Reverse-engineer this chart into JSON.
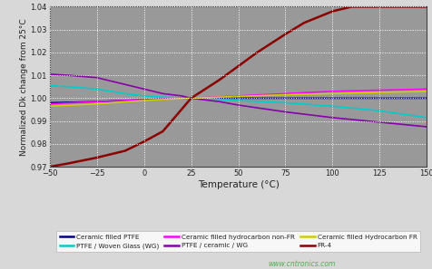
{
  "xlabel": "Temperature (°C)",
  "ylabel": "Normalized Dk change from 25°C",
  "xlim": [
    -50,
    150
  ],
  "ylim": [
    0.97,
    1.04
  ],
  "xticks": [
    -50,
    -25,
    0,
    25,
    50,
    75,
    100,
    125,
    150
  ],
  "yticks": [
    0.97,
    0.98,
    0.99,
    1.0,
    1.01,
    1.02,
    1.03,
    1.04
  ],
  "bg_color": "#999999",
  "fig_bg_color": "#d8d8d8",
  "grid_color": "#ffffff",
  "watermark": "www.cntronics.com",
  "series": [
    {
      "label": "Ceramic filled PTFE",
      "color": "#000080",
      "linewidth": 1.2,
      "x": [
        -50,
        -40,
        -25,
        -10,
        0,
        10,
        25,
        40,
        50,
        75,
        100,
        125,
        150
      ],
      "y": [
        0.998,
        0.9982,
        0.9985,
        0.999,
        0.9993,
        0.9997,
        1.0,
        1.0,
        1.0,
        1.0,
        1.0,
        1.0,
        1.0
      ]
    },
    {
      "label": "PTFE / Woven Glass (WG)",
      "color": "#00cccc",
      "linewidth": 1.2,
      "x": [
        -50,
        -40,
        -25,
        -10,
        0,
        10,
        20,
        25,
        40,
        50,
        75,
        100,
        125,
        150
      ],
      "y": [
        1.0055,
        1.005,
        1.004,
        1.002,
        1.001,
        1.0005,
        1.0001,
        1.0,
        0.9995,
        0.999,
        0.998,
        0.9965,
        0.9945,
        0.9915
      ]
    },
    {
      "label": "Ceramic filled hydrocarbon non-FR",
      "color": "#ff00ff",
      "linewidth": 1.2,
      "x": [
        -50,
        -25,
        0,
        25,
        50,
        75,
        100,
        125,
        150
      ],
      "y": [
        0.9975,
        0.9985,
        0.9993,
        1.0,
        1.001,
        1.002,
        1.003,
        1.0035,
        1.004
      ]
    },
    {
      "label": "PTFE / ceramic / WG",
      "color": "#8800aa",
      "linewidth": 1.2,
      "x": [
        -50,
        -40,
        -25,
        -10,
        0,
        10,
        20,
        25,
        40,
        50,
        75,
        100,
        125,
        150
      ],
      "y": [
        1.0105,
        1.01,
        1.009,
        1.006,
        1.004,
        1.002,
        1.001,
        1.0,
        0.9985,
        0.997,
        0.994,
        0.9915,
        0.9895,
        0.9875
      ]
    },
    {
      "label": "Ceramic filled Hydrocarbon FR",
      "color": "#cccc00",
      "linewidth": 1.2,
      "x": [
        -50,
        -25,
        0,
        25,
        50,
        75,
        100,
        125,
        150
      ],
      "y": [
        0.9965,
        0.9975,
        0.999,
        1.0,
        1.0008,
        1.0015,
        1.002,
        1.0025,
        1.003
      ]
    },
    {
      "label": "FR-4",
      "color": "#8b0000",
      "linewidth": 1.8,
      "x": [
        -50,
        -40,
        -25,
        -10,
        0,
        10,
        25,
        40,
        50,
        60,
        75,
        85,
        100,
        110,
        115,
        125,
        150
      ],
      "y": [
        0.97,
        0.9715,
        0.974,
        0.977,
        0.981,
        0.9855,
        1.0,
        1.008,
        1.014,
        1.02,
        1.028,
        1.033,
        1.038,
        1.04,
        1.04,
        1.04,
        1.04
      ]
    }
  ]
}
